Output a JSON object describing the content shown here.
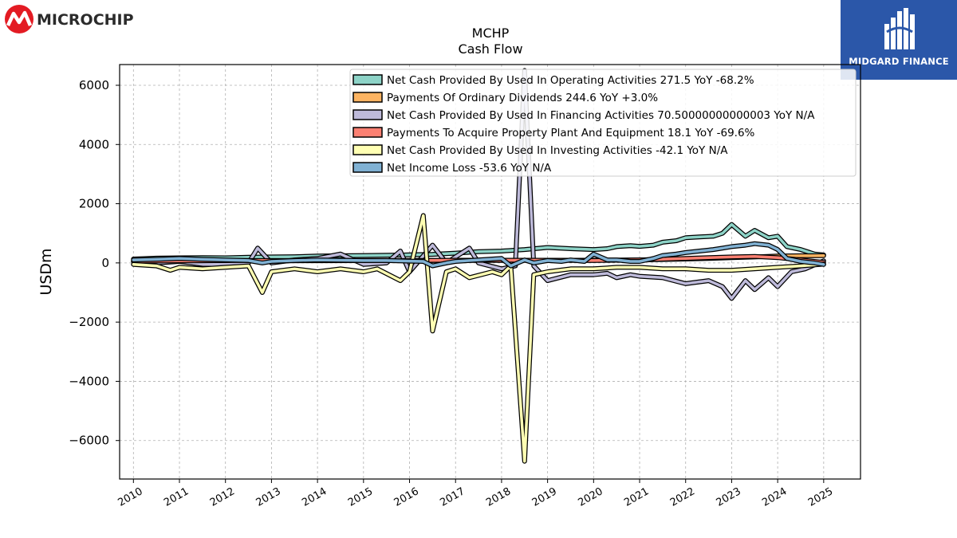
{
  "brand": {
    "left_logo_text": "MICROCHIP",
    "right_logo_text": "MIDGARD FINANCE"
  },
  "chart_data": {
    "type": "line",
    "title": "MCHP",
    "subtitle": "Cash Flow",
    "xlabel": "",
    "ylabel": "USDm",
    "xlim": [
      2009.7,
      2025.8
    ],
    "ylim": [
      -7300,
      6700
    ],
    "x_ticks": [
      "2010",
      "2011",
      "2012",
      "2013",
      "2014",
      "2015",
      "2016",
      "2017",
      "2018",
      "2019",
      "2020",
      "2021",
      "2022",
      "2023",
      "2024",
      "2025"
    ],
    "y_ticks": [
      6000,
      4000,
      2000,
      0,
      -2000,
      -4000,
      -6000
    ],
    "y_tick_labels": [
      "6000",
      "4000",
      "2000",
      "0",
      "−2000",
      "−4000",
      "−6000"
    ],
    "grid": true,
    "legend_position": "top-right",
    "series": [
      {
        "name": "Net Cash Provided By Used In Operating Activities",
        "legend": "Net Cash Provided By Used In Operating Activities  271.5 YoY -68.2%",
        "color": "#8dd3c7",
        "points": [
          [
            2010.0,
            130
          ],
          [
            2010.5,
            160
          ],
          [
            2011.0,
            170
          ],
          [
            2011.5,
            180
          ],
          [
            2012.0,
            170
          ],
          [
            2012.5,
            190
          ],
          [
            2013.0,
            200
          ],
          [
            2013.5,
            210
          ],
          [
            2014.0,
            230
          ],
          [
            2014.5,
            240
          ],
          [
            2015.0,
            250
          ],
          [
            2015.5,
            260
          ],
          [
            2016.0,
            270
          ],
          [
            2016.5,
            290
          ],
          [
            2017.0,
            330
          ],
          [
            2017.5,
            380
          ],
          [
            2018.0,
            400
          ],
          [
            2018.5,
            450
          ],
          [
            2019.0,
            520
          ],
          [
            2019.5,
            480
          ],
          [
            2020.0,
            450
          ],
          [
            2020.3,
            480
          ],
          [
            2020.5,
            550
          ],
          [
            2020.8,
            580
          ],
          [
            2021.0,
            560
          ],
          [
            2021.3,
            600
          ],
          [
            2021.5,
            700
          ],
          [
            2021.8,
            750
          ],
          [
            2022.0,
            850
          ],
          [
            2022.3,
            880
          ],
          [
            2022.6,
            900
          ],
          [
            2022.8,
            1000
          ],
          [
            2023.0,
            1300
          ],
          [
            2023.3,
            900
          ],
          [
            2023.5,
            1100
          ],
          [
            2023.8,
            850
          ],
          [
            2024.0,
            900
          ],
          [
            2024.2,
            550
          ],
          [
            2024.5,
            450
          ],
          [
            2024.8,
            300
          ],
          [
            2025.0,
            271.5
          ]
        ]
      },
      {
        "name": "Payments Of Ordinary Dividends",
        "legend": "Payments Of Ordinary Dividends  244.6 YoY +3.0%",
        "color": "#fdb462",
        "points": [
          [
            2010.0,
            60
          ],
          [
            2011.0,
            65
          ],
          [
            2012.0,
            70
          ],
          [
            2013.0,
            72
          ],
          [
            2014.0,
            75
          ],
          [
            2015.0,
            78
          ],
          [
            2016.0,
            80
          ],
          [
            2017.0,
            82
          ],
          [
            2018.0,
            85
          ],
          [
            2019.0,
            88
          ],
          [
            2020.0,
            90
          ],
          [
            2021.0,
            100
          ],
          [
            2022.0,
            130
          ],
          [
            2022.5,
            150
          ],
          [
            2023.0,
            180
          ],
          [
            2023.5,
            200
          ],
          [
            2024.0,
            230
          ],
          [
            2024.5,
            240
          ],
          [
            2025.0,
            244.6
          ]
        ]
      },
      {
        "name": "Net Cash Provided By Used In Financing Activities",
        "legend": "Net Cash Provided By Used In Financing Activities  70.50000000000003 YoY N/A",
        "color": "#bebada",
        "points": [
          [
            2010.0,
            50
          ],
          [
            2010.5,
            0
          ],
          [
            2011.0,
            50
          ],
          [
            2011.5,
            -50
          ],
          [
            2012.0,
            -50
          ],
          [
            2012.5,
            0
          ],
          [
            2012.7,
            500
          ],
          [
            2013.0,
            0
          ],
          [
            2013.5,
            100
          ],
          [
            2014.0,
            150
          ],
          [
            2014.5,
            300
          ],
          [
            2015.0,
            -50
          ],
          [
            2015.5,
            0
          ],
          [
            2015.8,
            400
          ],
          [
            2016.0,
            -300
          ],
          [
            2016.5,
            600
          ],
          [
            2016.8,
            0
          ],
          [
            2017.0,
            200
          ],
          [
            2017.3,
            500
          ],
          [
            2017.5,
            0
          ],
          [
            2018.0,
            -200
          ],
          [
            2018.3,
            -100
          ],
          [
            2018.5,
            6500
          ],
          [
            2018.7,
            -100
          ],
          [
            2019.0,
            -600
          ],
          [
            2019.5,
            -400
          ],
          [
            2020.0,
            -400
          ],
          [
            2020.3,
            -350
          ],
          [
            2020.5,
            -500
          ],
          [
            2020.8,
            -400
          ],
          [
            2021.0,
            -450
          ],
          [
            2021.5,
            -500
          ],
          [
            2022.0,
            -700
          ],
          [
            2022.5,
            -600
          ],
          [
            2022.8,
            -800
          ],
          [
            2023.0,
            -1200
          ],
          [
            2023.3,
            -600
          ],
          [
            2023.5,
            -900
          ],
          [
            2023.8,
            -500
          ],
          [
            2024.0,
            -800
          ],
          [
            2024.3,
            -300
          ],
          [
            2024.6,
            -200
          ],
          [
            2025.0,
            70.5
          ]
        ]
      },
      {
        "name": "Payments To Acquire Property Plant And Equipment",
        "legend": "Payments To Acquire Property Plant And Equipment  18.1 YoY -69.6%",
        "color": "#fb8072",
        "points": [
          [
            2010.0,
            60
          ],
          [
            2011.0,
            70
          ],
          [
            2012.0,
            80
          ],
          [
            2013.0,
            80
          ],
          [
            2014.0,
            80
          ],
          [
            2015.0,
            80
          ],
          [
            2016.0,
            80
          ],
          [
            2017.0,
            90
          ],
          [
            2018.0,
            90
          ],
          [
            2019.0,
            90
          ],
          [
            2020.0,
            80
          ],
          [
            2021.0,
            100
          ],
          [
            2022.0,
            150
          ],
          [
            2022.5,
            180
          ],
          [
            2023.0,
            200
          ],
          [
            2023.5,
            220
          ],
          [
            2024.0,
            180
          ],
          [
            2024.5,
            100
          ],
          [
            2025.0,
            18.1
          ]
        ]
      },
      {
        "name": "Net Cash Provided By Used In Investing Activities",
        "legend": "Net Cash Provided By Used In Investing Activities  -42.1 YoY N/A",
        "color": "#ffffb3",
        "points": [
          [
            2010.0,
            -50
          ],
          [
            2010.5,
            -100
          ],
          [
            2010.8,
            -250
          ],
          [
            2011.0,
            -150
          ],
          [
            2011.5,
            -200
          ],
          [
            2012.0,
            -150
          ],
          [
            2012.5,
            -100
          ],
          [
            2012.8,
            -1000
          ],
          [
            2013.0,
            -300
          ],
          [
            2013.5,
            -200
          ],
          [
            2014.0,
            -300
          ],
          [
            2014.5,
            -200
          ],
          [
            2015.0,
            -300
          ],
          [
            2015.3,
            -200
          ],
          [
            2015.8,
            -600
          ],
          [
            2016.0,
            -300
          ],
          [
            2016.3,
            1600
          ],
          [
            2016.5,
            -2300
          ],
          [
            2016.8,
            -300
          ],
          [
            2017.0,
            -200
          ],
          [
            2017.3,
            -500
          ],
          [
            2017.8,
            -300
          ],
          [
            2018.0,
            -400
          ],
          [
            2018.2,
            -100
          ],
          [
            2018.5,
            -6700
          ],
          [
            2018.7,
            -400
          ],
          [
            2019.0,
            -300
          ],
          [
            2019.5,
            -200
          ],
          [
            2020.0,
            -200
          ],
          [
            2020.5,
            -150
          ],
          [
            2021.0,
            -150
          ],
          [
            2021.5,
            -200
          ],
          [
            2022.0,
            -200
          ],
          [
            2022.5,
            -250
          ],
          [
            2023.0,
            -250
          ],
          [
            2023.5,
            -200
          ],
          [
            2024.0,
            -150
          ],
          [
            2024.5,
            -100
          ],
          [
            2025.0,
            -42.1
          ]
        ]
      },
      {
        "name": "Net Income Loss",
        "legend": "Net Income Loss  -53.6 YoY N/A",
        "color": "#80b1d3",
        "points": [
          [
            2010.0,
            100
          ],
          [
            2010.5,
            120
          ],
          [
            2011.0,
            150
          ],
          [
            2011.5,
            120
          ],
          [
            2012.0,
            100
          ],
          [
            2012.5,
            80
          ],
          [
            2012.8,
            0
          ],
          [
            2013.0,
            50
          ],
          [
            2013.5,
            80
          ],
          [
            2014.0,
            100
          ],
          [
            2014.5,
            90
          ],
          [
            2015.0,
            80
          ],
          [
            2015.5,
            80
          ],
          [
            2016.0,
            60
          ],
          [
            2016.3,
            50
          ],
          [
            2016.5,
            -100
          ],
          [
            2016.8,
            0
          ],
          [
            2017.0,
            50
          ],
          [
            2017.5,
            100
          ],
          [
            2018.0,
            150
          ],
          [
            2018.2,
            -100
          ],
          [
            2018.5,
            100
          ],
          [
            2018.7,
            0
          ],
          [
            2019.0,
            80
          ],
          [
            2019.3,
            50
          ],
          [
            2019.5,
            100
          ],
          [
            2019.8,
            50
          ],
          [
            2020.0,
            300
          ],
          [
            2020.3,
            100
          ],
          [
            2020.5,
            100
          ],
          [
            2020.8,
            50
          ],
          [
            2021.0,
            50
          ],
          [
            2021.3,
            150
          ],
          [
            2021.5,
            250
          ],
          [
            2021.8,
            300
          ],
          [
            2022.0,
            350
          ],
          [
            2022.3,
            400
          ],
          [
            2022.6,
            450
          ],
          [
            2022.8,
            500
          ],
          [
            2023.0,
            550
          ],
          [
            2023.3,
            600
          ],
          [
            2023.5,
            650
          ],
          [
            2023.8,
            600
          ],
          [
            2024.0,
            450
          ],
          [
            2024.2,
            150
          ],
          [
            2024.5,
            50
          ],
          [
            2024.8,
            0
          ],
          [
            2025.0,
            -53.6
          ]
        ]
      }
    ]
  }
}
